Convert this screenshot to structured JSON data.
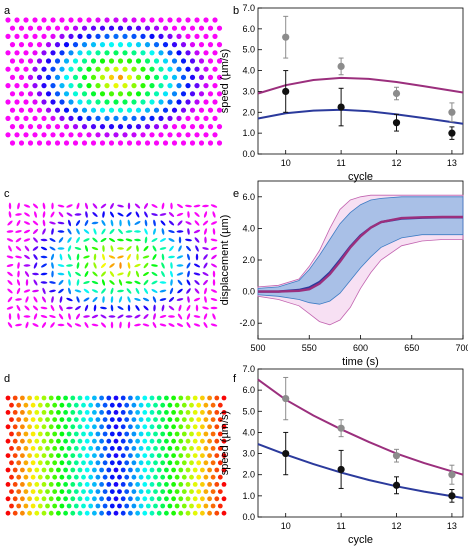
{
  "panels": {
    "a": {
      "label": "a",
      "scheme": "radial-hue"
    },
    "c": {
      "label": "c",
      "scheme": "radial-hue-ellipses"
    },
    "d": {
      "label": "d",
      "scheme": "vertical-band-hue"
    }
  },
  "colors": {
    "purple": "#9b2f7d",
    "blue": "#2b3a9c",
    "gray": "#8c8c8c",
    "black": "#111111",
    "band_blue": "#6aa6dd",
    "band_pink": "#e8a6dd"
  },
  "chart_data": [
    {
      "id": "b",
      "label": "b",
      "type": "scatter",
      "xlabel": "cycle",
      "ylabel": "speed (µm/s)",
      "xlim": [
        9.5,
        13.2
      ],
      "ylim": [
        0.0,
        7.0
      ],
      "xticks": [
        "10",
        "11",
        "12",
        "13"
      ],
      "yticks": [
        "0.0",
        "1.0",
        "2.0",
        "3.0",
        "4.0",
        "5.0",
        "6.0",
        "7.0"
      ],
      "series": [
        {
          "color": "#8c8c8c",
          "x": [
            10,
            11,
            12,
            13
          ],
          "y": [
            5.6,
            4.2,
            2.9,
            2.0
          ],
          "err": [
            1.0,
            0.4,
            0.3,
            0.45
          ]
        },
        {
          "color": "#111111",
          "x": [
            10,
            11,
            12,
            13
          ],
          "y": [
            3.0,
            2.25,
            1.5,
            1.0
          ],
          "err": [
            1.0,
            0.9,
            0.4,
            0.3
          ]
        }
      ],
      "curves": [
        {
          "color": "#9b2f7d",
          "x": [
            9.5,
            10.0,
            10.5,
            11.0,
            11.5,
            12.0,
            12.5,
            13.2
          ],
          "y": [
            2.9,
            3.3,
            3.55,
            3.65,
            3.6,
            3.45,
            3.25,
            2.95
          ]
        },
        {
          "color": "#2b3a9c",
          "x": [
            9.5,
            10.0,
            10.5,
            11.0,
            11.5,
            12.0,
            12.5,
            13.2
          ],
          "y": [
            1.7,
            1.95,
            2.08,
            2.12,
            2.05,
            1.9,
            1.72,
            1.45
          ]
        }
      ]
    },
    {
      "id": "e",
      "label": "e",
      "type": "line",
      "xlabel": "time (s)",
      "ylabel": "displacement (µm)",
      "xlim": [
        500,
        700
      ],
      "ylim": [
        -3.0,
        7.0
      ],
      "xticks": [
        "500",
        "550",
        "600",
        "650",
        "700"
      ],
      "yticks": [
        "-2.0",
        "0.0",
        "2.0",
        "4.0",
        "6.0"
      ],
      "x": [
        500,
        520,
        540,
        550,
        560,
        570,
        580,
        590,
        600,
        610,
        620,
        640,
        660,
        680,
        700
      ],
      "mean_purple": [
        0.0,
        0.0,
        0.05,
        0.15,
        0.5,
        1.1,
        1.9,
        2.8,
        3.5,
        4.05,
        4.4,
        4.65,
        4.7,
        4.72,
        4.72
      ],
      "mean_blue": [
        0.0,
        0.0,
        0.1,
        0.25,
        0.6,
        1.2,
        2.0,
        2.85,
        3.55,
        4.05,
        4.4,
        4.62,
        4.68,
        4.7,
        4.7
      ],
      "blue_band": [
        {
          "lo": -0.2,
          "hi": 0.2
        },
        {
          "lo": -0.3,
          "hi": 0.3
        },
        {
          "lo": -0.5,
          "hi": 0.7
        },
        {
          "lo": -0.7,
          "hi": 1.4
        },
        {
          "lo": -0.8,
          "hi": 2.3
        },
        {
          "lo": -0.6,
          "hi": 3.3
        },
        {
          "lo": -0.1,
          "hi": 4.3
        },
        {
          "lo": 0.7,
          "hi": 5.0
        },
        {
          "lo": 1.5,
          "hi": 5.5
        },
        {
          "lo": 2.2,
          "hi": 5.8
        },
        {
          "lo": 2.8,
          "hi": 5.9
        },
        {
          "lo": 3.4,
          "hi": 6.0
        },
        {
          "lo": 3.6,
          "hi": 6.0
        },
        {
          "lo": 3.6,
          "hi": 6.0
        },
        {
          "lo": 3.6,
          "hi": 6.0
        }
      ],
      "pink_band": [
        {
          "lo": -0.3,
          "hi": 0.3
        },
        {
          "lo": -0.5,
          "hi": 0.4
        },
        {
          "lo": -0.9,
          "hi": 0.8
        },
        {
          "lo": -1.4,
          "hi": 1.6
        },
        {
          "lo": -1.9,
          "hi": 2.6
        },
        {
          "lo": -2.1,
          "hi": 4.0
        },
        {
          "lo": -1.8,
          "hi": 5.2
        },
        {
          "lo": -1.0,
          "hi": 5.8
        },
        {
          "lo": 0.2,
          "hi": 6.0
        },
        {
          "lo": 1.2,
          "hi": 6.1
        },
        {
          "lo": 2.0,
          "hi": 6.1
        },
        {
          "lo": 2.9,
          "hi": 6.1
        },
        {
          "lo": 3.2,
          "hi": 6.1
        },
        {
          "lo": 3.3,
          "hi": 6.1
        },
        {
          "lo": 3.3,
          "hi": 6.1
        }
      ]
    },
    {
      "id": "f",
      "label": "f",
      "type": "scatter",
      "xlabel": "cycle",
      "ylabel": "speed (µm/s)",
      "xlim": [
        9.5,
        13.2
      ],
      "ylim": [
        0.0,
        7.0
      ],
      "xticks": [
        "10",
        "11",
        "12",
        "13"
      ],
      "yticks": [
        "0.0",
        "1.0",
        "2.0",
        "3.0",
        "4.0",
        "5.0",
        "6.0",
        "7.0"
      ],
      "series": [
        {
          "color": "#8c8c8c",
          "x": [
            10,
            11,
            12,
            13
          ],
          "y": [
            5.6,
            4.2,
            2.9,
            2.0
          ],
          "err": [
            1.0,
            0.4,
            0.3,
            0.45
          ]
        },
        {
          "color": "#111111",
          "x": [
            10,
            11,
            12,
            13
          ],
          "y": [
            3.0,
            2.25,
            1.5,
            1.0
          ],
          "err": [
            1.0,
            0.9,
            0.4,
            0.3
          ]
        }
      ],
      "curves": [
        {
          "color": "#9b2f7d",
          "x": [
            9.5,
            10.0,
            10.5,
            11.0,
            11.5,
            12.0,
            12.5,
            13.2
          ],
          "y": [
            6.5,
            5.55,
            4.8,
            4.15,
            3.55,
            3.0,
            2.55,
            2.0
          ]
        },
        {
          "color": "#2b3a9c",
          "x": [
            9.5,
            10.0,
            10.5,
            11.0,
            11.5,
            12.0,
            12.5,
            13.2
          ],
          "y": [
            3.45,
            2.95,
            2.5,
            2.1,
            1.75,
            1.45,
            1.2,
            0.9
          ]
        }
      ]
    }
  ]
}
